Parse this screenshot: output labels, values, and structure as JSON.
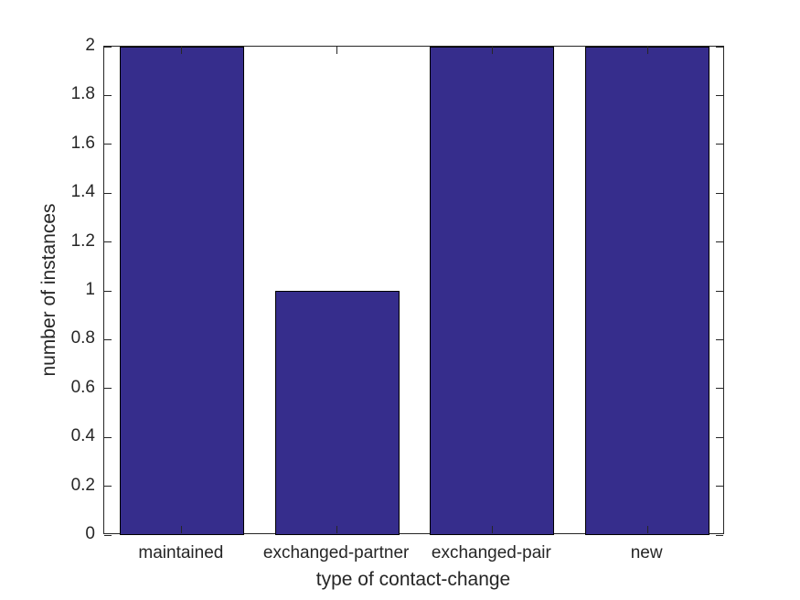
{
  "chart_data": {
    "type": "bar",
    "categories": [
      "maintained",
      "exchanged-partner",
      "exchanged-pair",
      "new"
    ],
    "values": [
      2,
      1,
      2,
      2
    ],
    "title": "",
    "xlabel": "type of contact-change",
    "ylabel": "number of instances",
    "ylim": [
      0,
      2
    ],
    "yticks": [
      0,
      0.2,
      0.4,
      0.6,
      0.8,
      1,
      1.2,
      1.4,
      1.6,
      1.8,
      2
    ],
    "ytick_labels": [
      "0",
      "0.2",
      "0.4",
      "0.6",
      "0.8",
      "1",
      "1.2",
      "1.4",
      "1.6",
      "1.8",
      "2"
    ],
    "bar_width_fraction": 0.8,
    "bar_color": "#362D8C",
    "bar_edge_color": "#000000",
    "axis_color": "#262626",
    "text_color": "#262626",
    "background_color": "#ffffff",
    "grid": false,
    "legend": null,
    "tick_direction": "in"
  }
}
